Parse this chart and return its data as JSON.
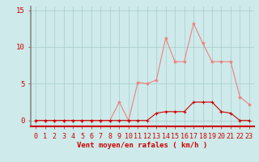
{
  "x": [
    0,
    1,
    2,
    3,
    4,
    5,
    6,
    7,
    8,
    9,
    10,
    11,
    12,
    13,
    14,
    15,
    16,
    17,
    18,
    19,
    20,
    21,
    22,
    23
  ],
  "y_rafales": [
    0,
    0,
    0,
    0,
    0,
    0,
    0,
    0,
    0,
    2.5,
    0,
    5.2,
    5.0,
    5.5,
    11.2,
    8.0,
    8.0,
    13.2,
    10.5,
    8.0,
    8.0,
    8.0,
    3.2,
    2.2
  ],
  "y_moyen": [
    0,
    0,
    0,
    0,
    0,
    0,
    0,
    0,
    0,
    0,
    0,
    0,
    0,
    1.0,
    1.2,
    1.2,
    1.2,
    2.5,
    2.5,
    2.5,
    1.2,
    1.0,
    0,
    0
  ],
  "color_rafales": "#f08080",
  "color_moyen": "#cc0000",
  "bg_color": "#ceeaea",
  "grid_color": "#aacccc",
  "axis_color": "#cc0000",
  "spine_color": "#888888",
  "xlabel": "Vent moyen/en rafales ( km/h )",
  "ylabel_ticks": [
    0,
    5,
    10,
    15
  ],
  "xlim": [
    -0.5,
    23.5
  ],
  "ylim": [
    -0.8,
    15.5
  ],
  "xlabel_fontsize": 6.5,
  "tick_fontsize": 6.0
}
